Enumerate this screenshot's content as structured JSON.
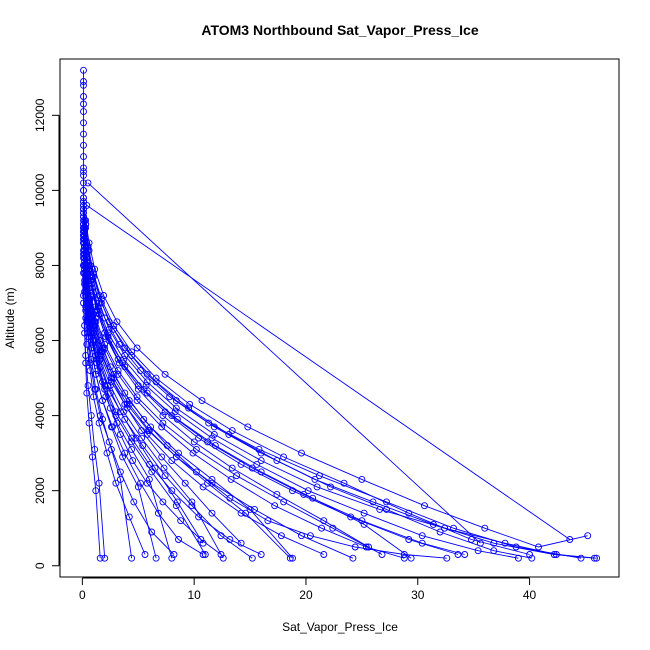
{
  "chart_data": {
    "type": "scatter",
    "title": "ATOM3 Northbound Sat_Vapor_Press_Ice",
    "xlabel": "Sat_Vapor_Press_Ice",
    "ylabel": "Altitude (m)",
    "xlim": [
      -2,
      48
    ],
    "ylim": [
      -300,
      13500
    ],
    "x_ticks": [
      0,
      10,
      20,
      30,
      40
    ],
    "y_ticks": [
      0,
      2000,
      4000,
      6000,
      8000,
      10000,
      12000
    ],
    "grid": false,
    "color": "#0000ff",
    "series": [
      {
        "x": [
          0.1,
          0.2,
          0.4,
          0.7,
          1.2,
          2.0,
          3.3,
          5.2,
          7.8,
          11.3,
          15.8,
          21.2,
          27.2,
          33.2,
          38.8,
          44.6
        ],
        "y": [
          9800,
          9200,
          8600,
          8000,
          7300,
          6600,
          5900,
          5200,
          4500,
          3800,
          3100,
          2400,
          1700,
          1000,
          500,
          200
        ]
      },
      {
        "x": [
          0.1,
          0.3,
          0.5,
          0.9,
          1.5,
          2.4,
          3.8,
          5.8,
          8.4,
          11.8,
          16.0,
          20.8,
          26.0,
          31.4,
          36.8,
          42.2,
          45.8
        ],
        "y": [
          9700,
          9100,
          8500,
          7900,
          7200,
          6500,
          5800,
          5100,
          4400,
          3700,
          3000,
          2300,
          1700,
          1100,
          600,
          300,
          200
        ]
      },
      {
        "x": [
          0.1,
          0.2,
          0.4,
          0.8,
          1.3,
          2.1,
          3.3,
          5.0,
          7.2,
          10.0,
          13.4,
          17.4,
          21.6,
          25.6
        ],
        "y": [
          9400,
          8800,
          8200,
          7500,
          6800,
          6100,
          5400,
          4700,
          4000,
          3300,
          2600,
          1900,
          1200,
          500
        ]
      },
      {
        "x": [
          0.1,
          0.2,
          0.4,
          0.7,
          1.1,
          1.8,
          2.8,
          4.2,
          6.0,
          8.4,
          11.2,
          14.6,
          18.6
        ],
        "y": [
          9000,
          8400,
          7800,
          7100,
          6400,
          5700,
          5000,
          4300,
          3600,
          2900,
          2200,
          1400,
          200
        ]
      },
      {
        "x": [
          0.1,
          0.2,
          0.3,
          0.5,
          0.9,
          1.4,
          2.1,
          3.1,
          4.4,
          6.0,
          8.0
        ],
        "y": [
          8700,
          8000,
          7300,
          6600,
          5900,
          5200,
          4500,
          3800,
          3100,
          2300,
          200
        ]
      },
      {
        "x": [
          0.1,
          0.2,
          0.3,
          0.5,
          0.8,
          1.2,
          1.8,
          2.6,
          3.6,
          5.0,
          6.6
        ],
        "y": [
          8600,
          7900,
          7200,
          6500,
          5800,
          5100,
          4400,
          3700,
          2900,
          2100,
          200
        ]
      },
      {
        "x": [
          0.1,
          0.2,
          0.3,
          0.5,
          0.8,
          1.2,
          1.8,
          2.6,
          3.4,
          4.4
        ],
        "y": [
          8300,
          7600,
          6900,
          6200,
          5500,
          4700,
          3900,
          3100,
          2300,
          200
        ]
      },
      {
        "x": [
          0.1,
          0.1,
          0.2,
          0.3,
          0.5,
          0.8,
          1.1,
          1.5,
          2.0
        ],
        "y": [
          8000,
          7200,
          6400,
          5600,
          4800,
          4000,
          3100,
          2200,
          200
        ]
      },
      {
        "x": [
          0.1,
          0.1,
          0.2,
          0.3,
          0.4,
          0.6,
          0.9,
          1.2,
          1.6
        ],
        "y": [
          7800,
          7000,
          6200,
          5400,
          4600,
          3800,
          2900,
          2000,
          200
        ]
      },
      {
        "x": [
          0.1,
          0.2,
          0.4,
          0.7,
          1.2,
          2.0,
          3.2,
          5.0,
          7.4,
          10.4,
          14.2,
          18.8,
          24.0,
          29.2,
          33.6
        ],
        "y": [
          9500,
          8900,
          8300,
          7600,
          6900,
          6200,
          5500,
          4800,
          4100,
          3400,
          2700,
          2000,
          1300,
          700,
          300
        ]
      },
      {
        "x": [
          0.1,
          0.3,
          0.6,
          1.0,
          1.7,
          2.8,
          4.4,
          6.6,
          9.5,
          13.1,
          17.4,
          22.2,
          27.2,
          32.0,
          36.8,
          40.2
        ],
        "y": [
          9600,
          9000,
          8400,
          7700,
          7000,
          6300,
          5600,
          4900,
          4200,
          3500,
          2800,
          2100,
          1500,
          900,
          400,
          200
        ]
      },
      {
        "x": [
          0.1,
          0.2,
          0.5,
          0.9,
          1.5,
          2.4,
          3.8,
          5.8,
          8.5,
          11.9,
          16.0,
          20.6,
          25.2,
          29.4
        ],
        "y": [
          9300,
          8700,
          8100,
          7400,
          6700,
          6000,
          5300,
          4600,
          3900,
          3200,
          2500,
          1800,
          1100,
          200
        ]
      },
      {
        "x": [
          0.1,
          0.2,
          0.4,
          0.7,
          1.1,
          1.8,
          2.8,
          4.2,
          6.1,
          8.6,
          11.6,
          15.0,
          18.8
        ],
        "y": [
          9100,
          8500,
          7900,
          7200,
          6500,
          5800,
          5100,
          4400,
          3700,
          3000,
          2300,
          1500,
          200
        ]
      },
      {
        "x": [
          0.1,
          0.2,
          0.4,
          0.6,
          1.0,
          1.6,
          2.5,
          3.7,
          5.3,
          7.3,
          9.8,
          12.6
        ],
        "y": [
          8800,
          8200,
          7600,
          6900,
          6200,
          5500,
          4800,
          4100,
          3400,
          2600,
          1700,
          200
        ]
      },
      {
        "x": [
          0.1,
          0.2,
          0.3,
          0.6,
          1.0,
          1.6,
          2.6,
          4.0,
          5.9,
          8.4,
          11.6,
          15.4,
          19.6,
          24.2
        ],
        "y": [
          9000,
          8400,
          7800,
          7100,
          6400,
          5700,
          5000,
          4300,
          3600,
          2900,
          2200,
          1500,
          800,
          200
        ]
      },
      {
        "x": [
          0.1,
          0.2,
          0.4,
          0.8,
          1.4,
          2.3,
          3.7,
          5.7,
          8.3,
          11.6,
          15.6,
          20.2,
          25.2,
          30.4,
          35.4,
          39.0
        ],
        "y": [
          9500,
          8900,
          8300,
          7600,
          6900,
          6200,
          5500,
          4800,
          4100,
          3400,
          2700,
          2000,
          1400,
          800,
          400,
          200
        ]
      },
      {
        "x": [
          0.1,
          0.2,
          0.4,
          0.7,
          1.2,
          2.0,
          3.2,
          4.9,
          7.2,
          10.2,
          13.8,
          18.0,
          22.4,
          26.8
        ],
        "y": [
          9200,
          8600,
          8000,
          7300,
          6600,
          5900,
          5200,
          4500,
          3800,
          3100,
          2400,
          1700,
          1000,
          300
        ]
      },
      {
        "x": [
          0.1,
          0.2,
          0.3,
          0.6,
          1.0,
          1.6,
          2.6,
          4.0,
          5.8,
          8.0,
          10.8,
          14.2,
          17.8,
          21.6
        ],
        "y": [
          8900,
          8300,
          7700,
          7000,
          6300,
          5600,
          4900,
          4200,
          3500,
          2800,
          2100,
          1400,
          800,
          300
        ]
      },
      {
        "x": [
          0.1,
          0.2,
          0.3,
          0.5,
          0.8,
          1.3,
          2.0,
          3.0,
          4.4,
          6.2,
          8.4,
          11.0
        ],
        "y": [
          8700,
          8100,
          7500,
          6800,
          6100,
          5400,
          4700,
          4000,
          3300,
          2500,
          1600,
          300
        ]
      },
      {
        "x": [
          0.1,
          0.2,
          0.3,
          0.5,
          0.8,
          1.3,
          2.0,
          3.0,
          4.4,
          6.0,
          8.0,
          10.4,
          13.2,
          16.0
        ],
        "y": [
          8800,
          8200,
          7600,
          6900,
          6200,
          5500,
          4800,
          4100,
          3400,
          2700,
          2000,
          1300,
          700,
          300
        ]
      },
      {
        "x": [
          0.1,
          0.3,
          0.5,
          1.0,
          1.7,
          2.8,
          4.4,
          6.6,
          9.6,
          13.4,
          18.0,
          23.4,
          29.2,
          34.8,
          40.0
        ],
        "y": [
          9700,
          9100,
          8500,
          7800,
          7100,
          6400,
          5700,
          5000,
          4300,
          3600,
          2900,
          2200,
          1400,
          700,
          300
        ]
      },
      {
        "x": [
          0.1,
          0.2,
          0.4,
          0.8,
          1.4,
          2.3,
          3.6,
          5.5,
          8.0,
          11.2,
          15.2,
          19.8,
          25.0,
          30.4,
          34.2
        ],
        "y": [
          9400,
          8800,
          8200,
          7500,
          6800,
          6100,
          5400,
          4700,
          4000,
          3300,
          2600,
          1900,
          1200,
          600,
          300
        ]
      },
      {
        "x": [
          0.1,
          0.2,
          0.3,
          0.5,
          0.8,
          1.2,
          1.8,
          2.7,
          3.8,
          5.2,
          6.8,
          8.6,
          10.8
        ],
        "y": [
          8400,
          7800,
          7200,
          6500,
          5800,
          5100,
          4400,
          3700,
          3000,
          2200,
          1400,
          700,
          300
        ]
      },
      {
        "x": [
          0.1,
          0.2,
          0.4,
          0.6,
          1.0,
          1.6,
          2.5,
          3.8,
          5.5,
          7.6,
          10.2,
          13.2,
          16.6,
          20.4,
          24.4,
          28.8,
          32.6
        ],
        "y": [
          9300,
          8700,
          8100,
          7400,
          6700,
          6000,
          5300,
          4600,
          3900,
          3200,
          2500,
          1800,
          1200,
          800,
          500,
          300,
          200
        ]
      },
      {
        "x": [
          0.1,
          0.2,
          0.3,
          0.5,
          0.7,
          1.1,
          1.6,
          2.4,
          3.4,
          4.6,
          6.2,
          8.2
        ],
        "y": [
          8200,
          7500,
          6800,
          6100,
          5400,
          4700,
          4000,
          3300,
          2500,
          1700,
          900,
          300
        ]
      },
      {
        "x": [
          0.1,
          0.2,
          0.3,
          0.4,
          0.7,
          1.0,
          1.5,
          2.2,
          3.0,
          4.2,
          5.6
        ],
        "y": [
          8000,
          7300,
          6600,
          5900,
          5200,
          4500,
          3800,
          3000,
          2200,
          1300,
          300
        ]
      },
      {
        "x": [
          0.1,
          0.2,
          0.5,
          0.9,
          1.5,
          2.4,
          3.8,
          5.8,
          8.4,
          11.8,
          16.0,
          21.0,
          26.6,
          32.4,
          37.8,
          42.4,
          46.0
        ],
        "y": [
          9600,
          9000,
          8400,
          7700,
          7000,
          6300,
          5600,
          4900,
          4200,
          3500,
          2800,
          2100,
          1500,
          1000,
          600,
          300,
          200
        ]
      },
      {
        "x": [
          0.1,
          0.3,
          0.6,
          1.1,
          1.9,
          3.1,
          4.9,
          7.4,
          10.7,
          14.8,
          19.6,
          25.0,
          30.6,
          36.0,
          40.8,
          45.2
        ],
        "y": [
          9800,
          9200,
          8600,
          7900,
          7200,
          6500,
          5800,
          5100,
          4400,
          3700,
          3000,
          2300,
          1600,
          1000,
          500,
          800
        ]
      },
      {
        "x": [
          0.1,
          0.2,
          0.4,
          0.7,
          1.2,
          2.0,
          3.2,
          4.9,
          7.1,
          9.9,
          13.3,
          17.2,
          21.4,
          25.4,
          28.8
        ],
        "y": [
          9100,
          8500,
          7900,
          7200,
          6500,
          5800,
          5100,
          4400,
          3700,
          3000,
          2300,
          1600,
          1000,
          500,
          200
        ]
      },
      {
        "x": [
          0.1,
          0.2,
          0.3,
          0.6,
          1.0,
          1.6,
          2.5,
          3.8,
          5.4,
          7.4,
          9.8,
          12.4,
          15.2
        ],
        "y": [
          8600,
          8000,
          7400,
          6700,
          6000,
          5300,
          4600,
          3900,
          3200,
          2400,
          1600,
          800,
          200
        ]
      },
      {
        "x": [
          0.5,
          35.6
        ],
        "y": [
          10200,
          600
        ]
      },
      {
        "x": [
          0.4,
          43.6
        ],
        "y": [
          9600,
          700
        ]
      },
      {
        "x": [
          0.1,
          0.1,
          0.1,
          0.1,
          0.1,
          0.1,
          0.1,
          0.1,
          0.1,
          0.1,
          0.1,
          0.1,
          0.1,
          0.1
        ],
        "y": [
          13200,
          12900,
          12800,
          12500,
          12300,
          12100,
          11800,
          11500,
          11200,
          10900,
          10600,
          10400,
          10200,
          10000
        ]
      },
      {
        "x": [
          0.1,
          0.1,
          0.1,
          0.2,
          0.2,
          0.3,
          0.3,
          0.4,
          0.4
        ],
        "y": [
          10500,
          10000,
          9500,
          9000,
          8500,
          8000,
          7500,
          7000,
          6500
        ]
      },
      {
        "x": [
          0.1,
          0.2,
          0.3,
          0.5,
          0.8,
          1.2,
          1.8,
          2.5,
          3.4,
          4.5,
          5.8,
          7.2,
          8.8,
          10.6,
          12.4
        ],
        "y": [
          8900,
          8300,
          7700,
          7000,
          6300,
          5600,
          4900,
          4200,
          3500,
          2800,
          2200,
          1700,
          1200,
          700,
          300
        ]
      },
      {
        "x": [
          0.1,
          0.2,
          0.4,
          0.7,
          1.1,
          1.7,
          2.6,
          3.8,
          5.3,
          7.1,
          9.2,
          11.6,
          14.2
        ],
        "y": [
          9000,
          8400,
          7800,
          7100,
          6400,
          5700,
          5000,
          4300,
          3600,
          2900,
          2200,
          1400,
          600
        ]
      },
      {
        "x": [
          0.1,
          0.2,
          0.4,
          0.6,
          1.0,
          1.5,
          2.3,
          3.4,
          4.8,
          6.5,
          8.5,
          10.8
        ],
        "y": [
          8800,
          8200,
          7600,
          6900,
          6200,
          5500,
          4800,
          4100,
          3400,
          2600,
          1700,
          600
        ]
      }
    ]
  }
}
